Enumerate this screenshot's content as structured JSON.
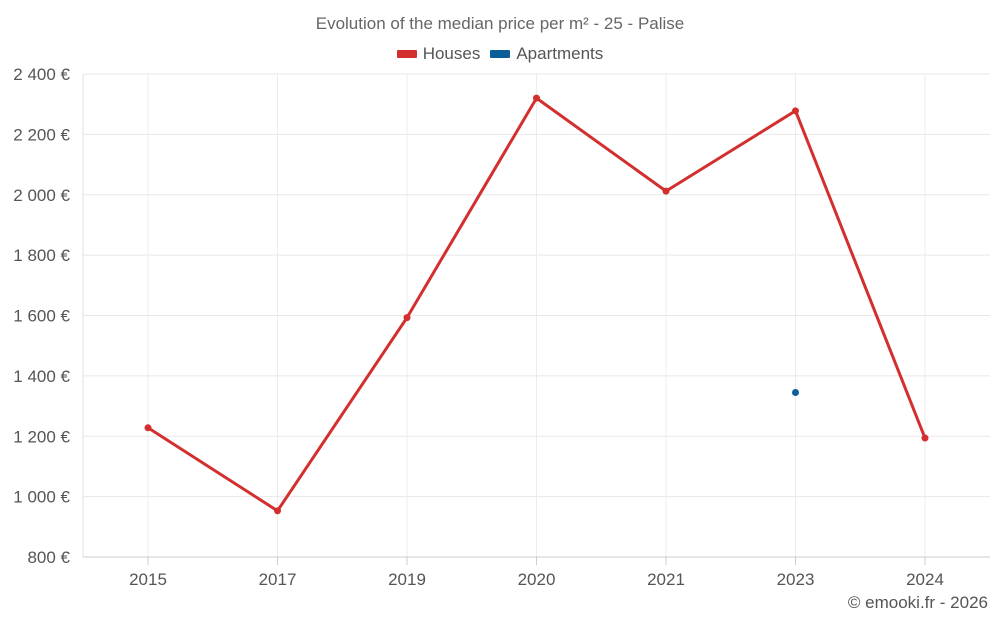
{
  "chart_data": {
    "type": "line",
    "title": "Evolution of the median price per m² - 25 - Palise",
    "categories": [
      "2015",
      "2017",
      "2019",
      "2020",
      "2021",
      "2023",
      "2024"
    ],
    "series": [
      {
        "name": "Houses",
        "color": "#d32f2f",
        "values": [
          1228,
          953,
          1593,
          2320,
          2012,
          2278,
          1194
        ]
      },
      {
        "name": "Apartments",
        "color": "#0b5f99",
        "values": [
          null,
          null,
          null,
          null,
          null,
          1345,
          null
        ]
      }
    ],
    "ylim": [
      800,
      2400
    ],
    "yticks": [
      800,
      1000,
      1200,
      1400,
      1600,
      1800,
      2000,
      2200,
      2400
    ],
    "ytick_labels": [
      "800 €",
      "1 000 €",
      "1 200 €",
      "1 400 €",
      "1 600 €",
      "1 800 €",
      "2 000 €",
      "2 200 €",
      "2 400 €"
    ],
    "grid": true,
    "legend_position": "top-center"
  },
  "credit": "© emooki.fr - 2026"
}
